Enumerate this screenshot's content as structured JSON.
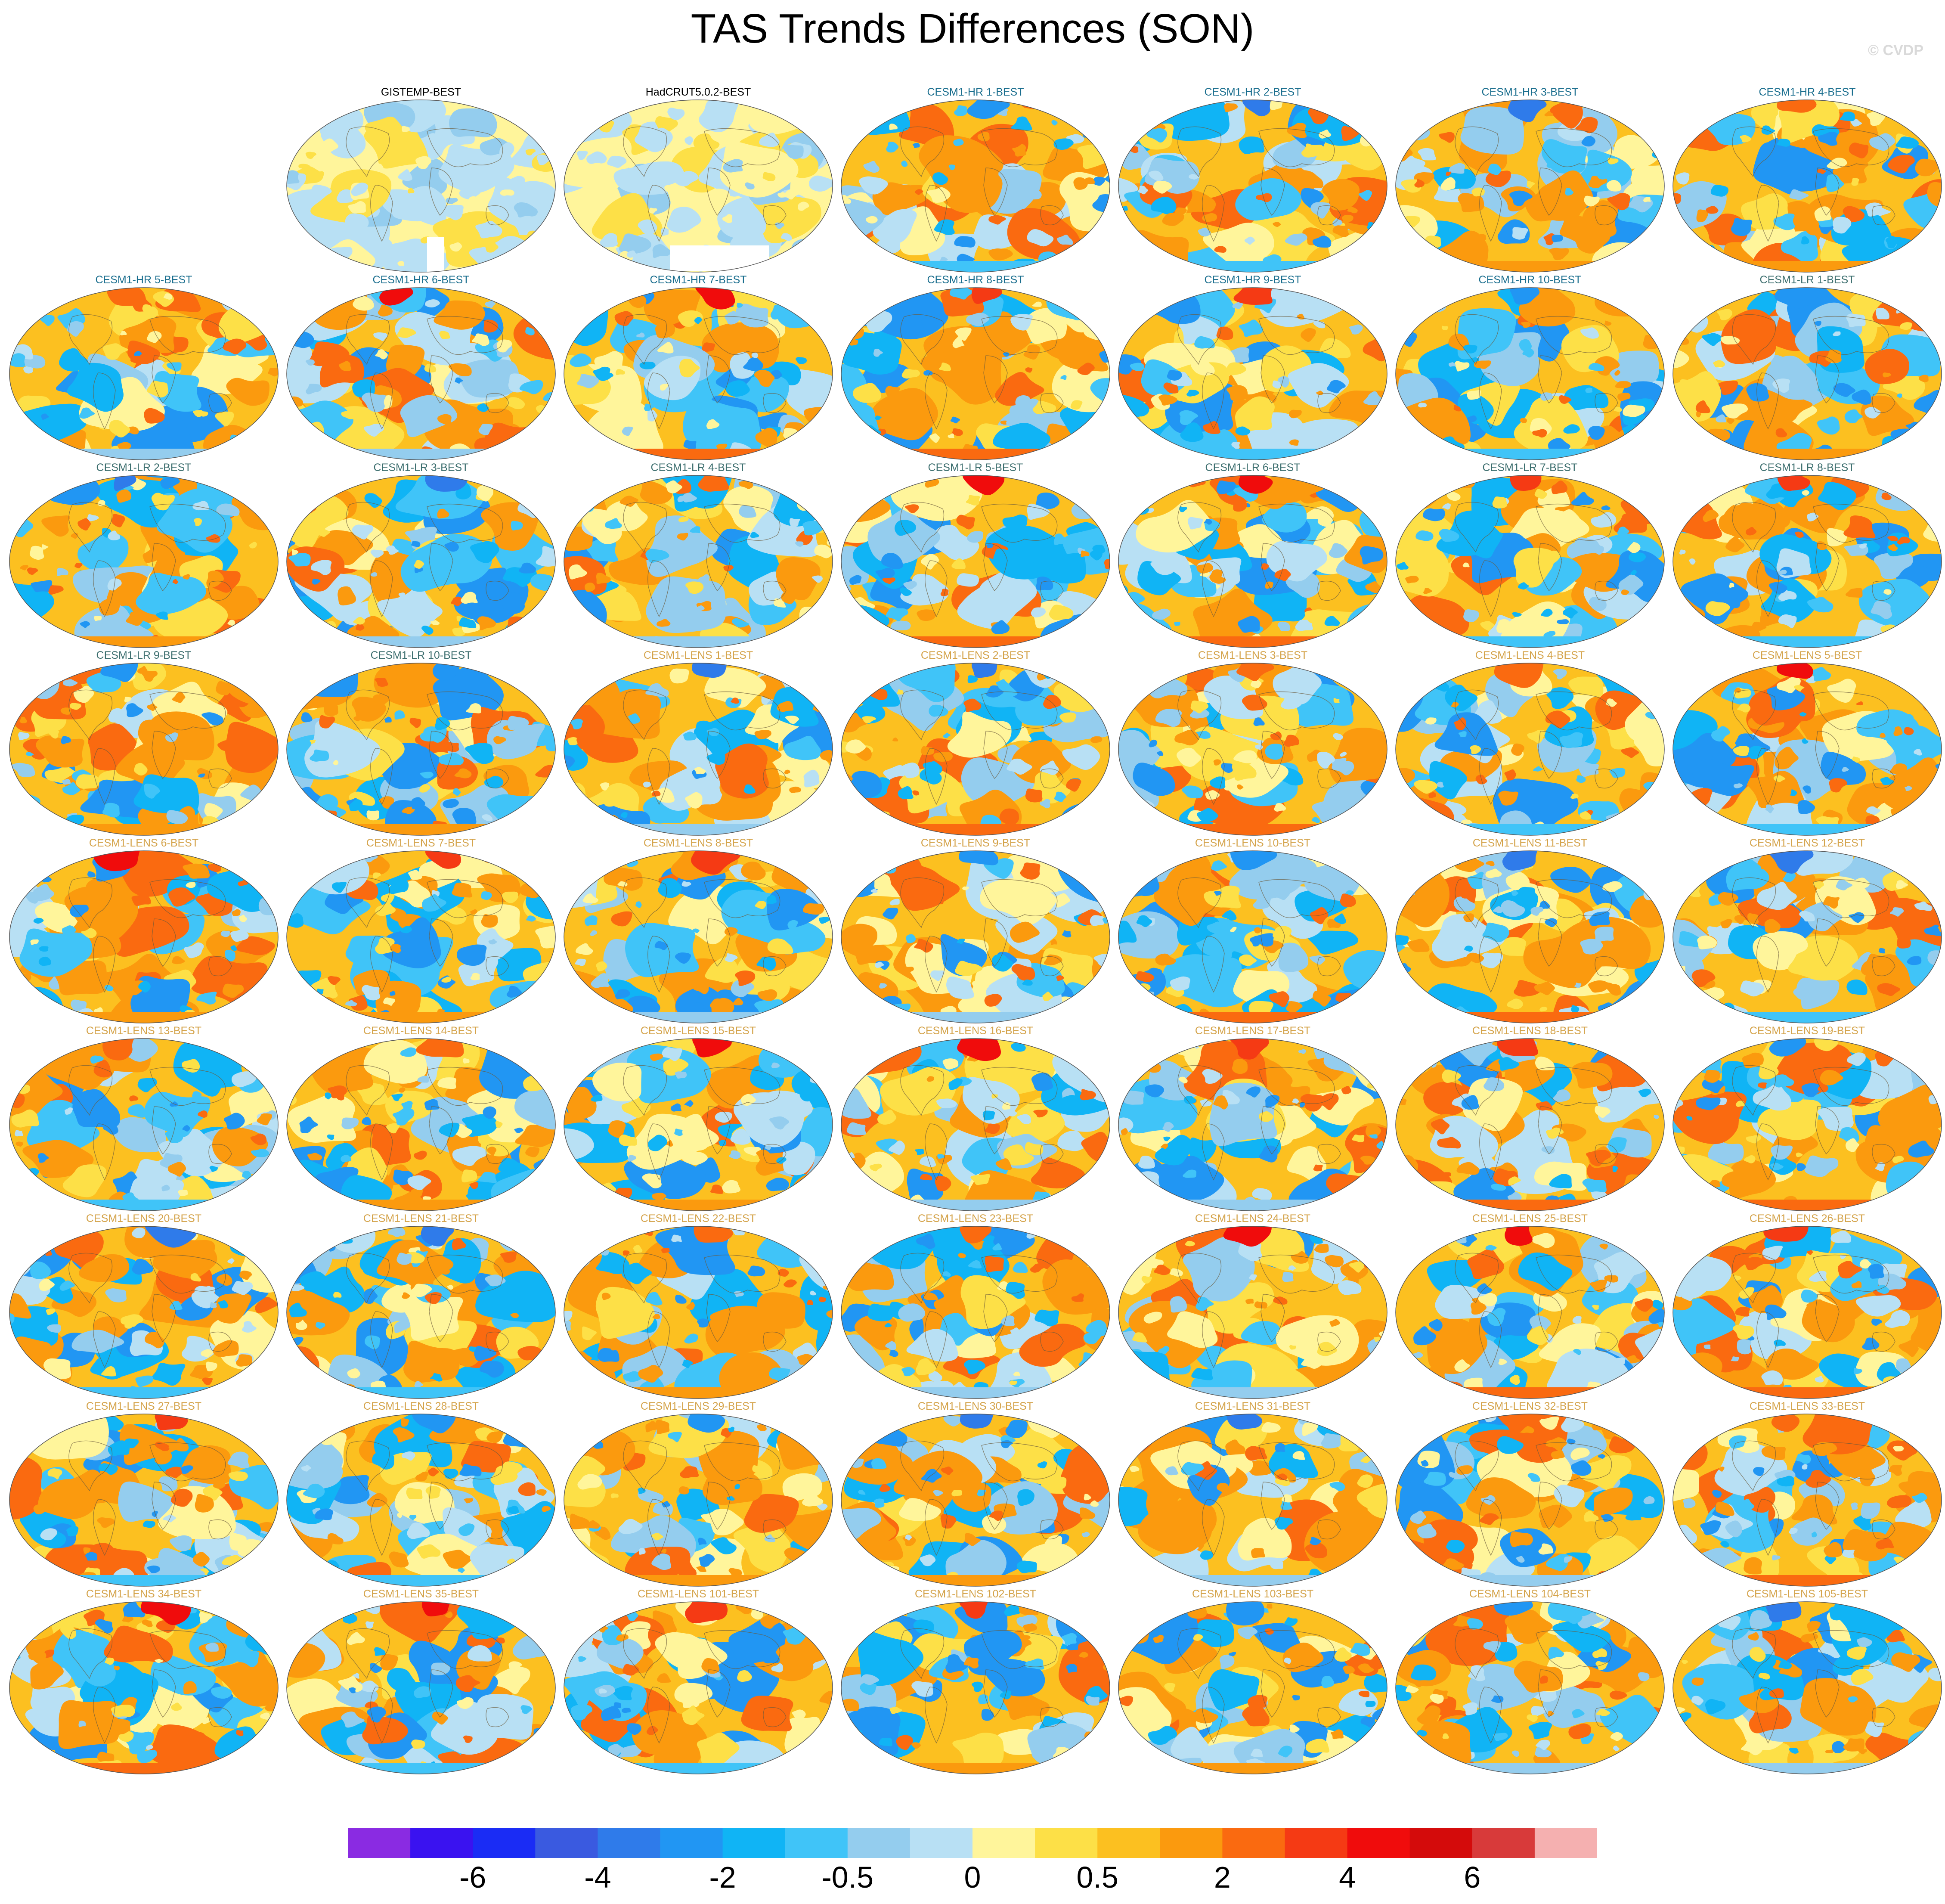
{
  "title": "TAS Trends Differences (SON)",
  "copyright": "© CVDP",
  "panels": [
    {
      "label": "GISTEMP-BEST",
      "kind": "obs"
    },
    {
      "label": "HadCRUT5.0.2-BEST",
      "kind": "obs"
    },
    {
      "label": "CESM1-HR 1-BEST",
      "kind": "hr"
    },
    {
      "label": "CESM1-HR 2-BEST",
      "kind": "hr"
    },
    {
      "label": "CESM1-HR 3-BEST",
      "kind": "hr"
    },
    {
      "label": "CESM1-HR 4-BEST",
      "kind": "hr"
    },
    {
      "label": "CESM1-HR 5-BEST",
      "kind": "hr"
    },
    {
      "label": "CESM1-HR 6-BEST",
      "kind": "hr"
    },
    {
      "label": "CESM1-HR 7-BEST",
      "kind": "hr"
    },
    {
      "label": "CESM1-HR 8-BEST",
      "kind": "hr"
    },
    {
      "label": "CESM1-HR 9-BEST",
      "kind": "hr"
    },
    {
      "label": "CESM1-HR 10-BEST",
      "kind": "hr"
    },
    {
      "label": "CESM1-LR 1-BEST",
      "kind": "lr"
    },
    {
      "label": "CESM1-LR 2-BEST",
      "kind": "lr"
    },
    {
      "label": "CESM1-LR 3-BEST",
      "kind": "lr"
    },
    {
      "label": "CESM1-LR 4-BEST",
      "kind": "lr"
    },
    {
      "label": "CESM1-LR 5-BEST",
      "kind": "lr"
    },
    {
      "label": "CESM1-LR 6-BEST",
      "kind": "lr"
    },
    {
      "label": "CESM1-LR 7-BEST",
      "kind": "lr"
    },
    {
      "label": "CESM1-LR 8-BEST",
      "kind": "lr"
    },
    {
      "label": "CESM1-LR 9-BEST",
      "kind": "lr"
    },
    {
      "label": "CESM1-LR 10-BEST",
      "kind": "lr"
    },
    {
      "label": "CESM1-LENS 1-BEST",
      "kind": "lens"
    },
    {
      "label": "CESM1-LENS 2-BEST",
      "kind": "lens"
    },
    {
      "label": "CESM1-LENS 3-BEST",
      "kind": "lens"
    },
    {
      "label": "CESM1-LENS 4-BEST",
      "kind": "lens"
    },
    {
      "label": "CESM1-LENS 5-BEST",
      "kind": "lens"
    },
    {
      "label": "CESM1-LENS 6-BEST",
      "kind": "lens"
    },
    {
      "label": "CESM1-LENS 7-BEST",
      "kind": "lens"
    },
    {
      "label": "CESM1-LENS 8-BEST",
      "kind": "lens"
    },
    {
      "label": "CESM1-LENS 9-BEST",
      "kind": "lens"
    },
    {
      "label": "CESM1-LENS 10-BEST",
      "kind": "lens"
    },
    {
      "label": "CESM1-LENS 11-BEST",
      "kind": "lens"
    },
    {
      "label": "CESM1-LENS 12-BEST",
      "kind": "lens"
    },
    {
      "label": "CESM1-LENS 13-BEST",
      "kind": "lens"
    },
    {
      "label": "CESM1-LENS 14-BEST",
      "kind": "lens"
    },
    {
      "label": "CESM1-LENS 15-BEST",
      "kind": "lens"
    },
    {
      "label": "CESM1-LENS 16-BEST",
      "kind": "lens"
    },
    {
      "label": "CESM1-LENS 17-BEST",
      "kind": "lens"
    },
    {
      "label": "CESM1-LENS 18-BEST",
      "kind": "lens"
    },
    {
      "label": "CESM1-LENS 19-BEST",
      "kind": "lens"
    },
    {
      "label": "CESM1-LENS 20-BEST",
      "kind": "lens"
    },
    {
      "label": "CESM1-LENS 21-BEST",
      "kind": "lens"
    },
    {
      "label": "CESM1-LENS 22-BEST",
      "kind": "lens"
    },
    {
      "label": "CESM1-LENS 23-BEST",
      "kind": "lens"
    },
    {
      "label": "CESM1-LENS 24-BEST",
      "kind": "lens"
    },
    {
      "label": "CESM1-LENS 25-BEST",
      "kind": "lens"
    },
    {
      "label": "CESM1-LENS 26-BEST",
      "kind": "lens"
    },
    {
      "label": "CESM1-LENS 27-BEST",
      "kind": "lens"
    },
    {
      "label": "CESM1-LENS 28-BEST",
      "kind": "lens"
    },
    {
      "label": "CESM1-LENS 29-BEST",
      "kind": "lens"
    },
    {
      "label": "CESM1-LENS 30-BEST",
      "kind": "lens"
    },
    {
      "label": "CESM1-LENS 31-BEST",
      "kind": "lens"
    },
    {
      "label": "CESM1-LENS 32-BEST",
      "kind": "lens"
    },
    {
      "label": "CESM1-LENS 33-BEST",
      "kind": "lens"
    },
    {
      "label": "CESM1-LENS 34-BEST",
      "kind": "lens"
    },
    {
      "label": "CESM1-LENS 35-BEST",
      "kind": "lens"
    },
    {
      "label": "CESM1-LENS 101-BEST",
      "kind": "lens"
    },
    {
      "label": "CESM1-LENS 102-BEST",
      "kind": "lens"
    },
    {
      "label": "CESM1-LENS 103-BEST",
      "kind": "lens"
    },
    {
      "label": "CESM1-LENS 104-BEST",
      "kind": "lens"
    },
    {
      "label": "CESM1-LENS 105-BEST",
      "kind": "lens"
    }
  ],
  "label_colors": {
    "obs": "#000000",
    "hr": "#1a6e8e",
    "lr": "#3c6e6e",
    "lens": "#d4a34a"
  },
  "colorbar": {
    "colors": [
      "#8a2be2",
      "#3a12f0",
      "#1a2cf5",
      "#3a5ae0",
      "#2f7bea",
      "#2196f3",
      "#10b4f5",
      "#40c4f8",
      "#94cdee",
      "#b8e0f4",
      "#fff59b",
      "#fde047",
      "#fcc020",
      "#fb9a0e",
      "#fa6a10",
      "#f53a14",
      "#f00c0c",
      "#d40b0b",
      "#d83a3a",
      "#f5b0b0"
    ],
    "tick_labels": [
      "-6",
      "-4",
      "-2",
      "-0.5",
      "0",
      "0.5",
      "2",
      "4",
      "6"
    ]
  }
}
